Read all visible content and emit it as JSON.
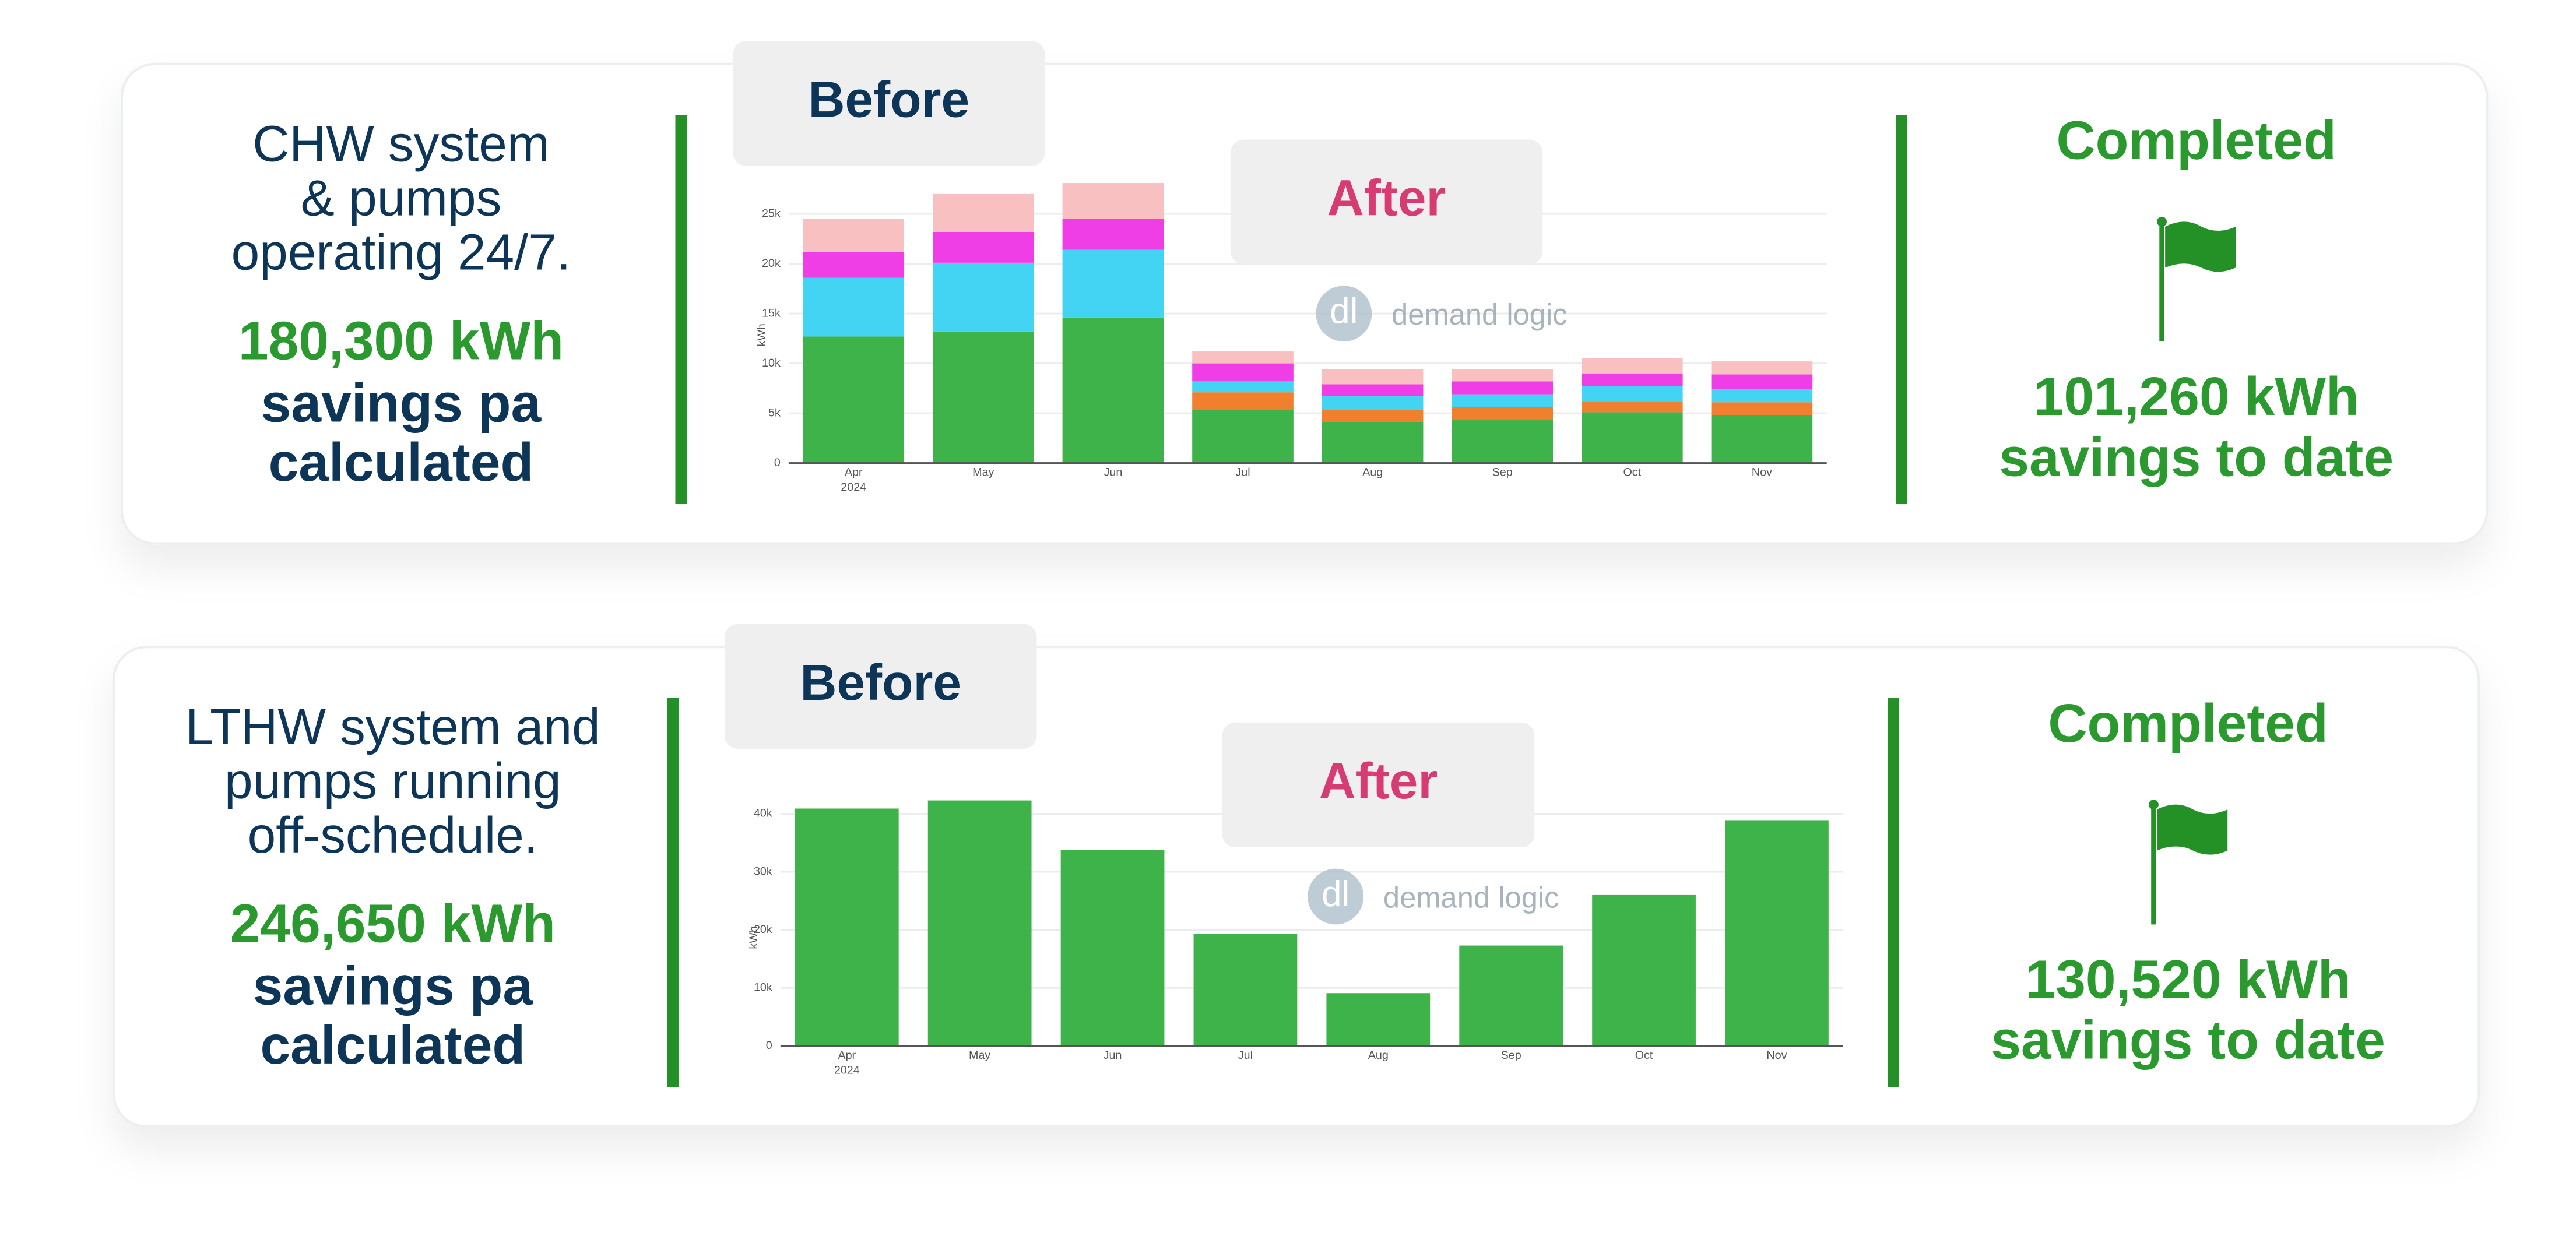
{
  "panels": [
    {
      "description": [
        "CHW system",
        "& pumps",
        "operating 24/7."
      ],
      "savings_value": "180,300 kWh",
      "savings_text": [
        "savings pa",
        "calculated"
      ],
      "before_label": "Before",
      "after_label": "After",
      "logo": "dl",
      "watermark": "demand logic",
      "status": "Completed",
      "to_date_value": "101,260 kWh",
      "to_date_text": "savings to date",
      "chart_data": {
        "type": "stacked_bar",
        "y_label": "kWh",
        "categories": [
          "Apr",
          "May",
          "Jun",
          "Jul",
          "Aug",
          "Sep",
          "Oct",
          "Nov"
        ],
        "year": "2024",
        "series": [
          {
            "color": "#3db34a",
            "values": [
              12700,
              13200,
              14600,
              5400,
              4100,
              4400,
              5100,
              4800
            ]
          },
          {
            "color": "#f07f2e",
            "values": [
              0,
              0,
              0,
              1700,
              1200,
              1200,
              1100,
              1300
            ]
          },
          {
            "color": "#43d3f3",
            "values": [
              5900,
              6900,
              6800,
              1100,
              1400,
              1300,
              1500,
              1300
            ]
          },
          {
            "color": "#ef3ee6",
            "values": [
              2600,
              3100,
              3100,
              1800,
              1200,
              1300,
              1300,
              1500
            ]
          },
          {
            "color": "#f8c0c0",
            "values": [
              3300,
              3800,
              3600,
              1200,
              1500,
              1200,
              1500,
              1300
            ]
          }
        ],
        "ylim": [
          0,
          29000
        ],
        "yticks": [
          0,
          {
            "value": 5000,
            "label": "5k"
          },
          {
            "value": 10000,
            "label": "10k"
          },
          {
            "value": 15000,
            "label": "15k"
          },
          {
            "value": 20000,
            "label": "20k"
          },
          {
            "value": 25000,
            "label": "25k"
          }
        ],
        "grid": true
      }
    },
    {
      "description": [
        "LTHW system and",
        "pumps running",
        "off-schedule."
      ],
      "savings_value": "246,650 kWh",
      "savings_text": [
        "savings pa",
        "calculated"
      ],
      "before_label": "Before",
      "after_label": "After",
      "logo": "dl",
      "watermark": "demand logic",
      "status": "Completed",
      "to_date_value": "130,520 kWh",
      "to_date_text": "savings to date",
      "chart_data": {
        "type": "bar",
        "y_label": "kWh",
        "categories": [
          "Apr",
          "May",
          "Jun",
          "Jul",
          "Aug",
          "Sep",
          "Oct",
          "Nov"
        ],
        "year": "2024",
        "color": "#3db34a",
        "values": [
          40900,
          42300,
          33800,
          19300,
          9100,
          17300,
          26100,
          38900
        ],
        "ylim": [
          0,
          43000
        ],
        "yticks": [
          0,
          {
            "value": 10000,
            "label": "10k"
          },
          {
            "value": 20000,
            "label": "20k"
          },
          {
            "value": 30000,
            "label": "30k"
          },
          {
            "value": 40000,
            "label": "40k"
          }
        ],
        "grid": true
      }
    }
  ]
}
